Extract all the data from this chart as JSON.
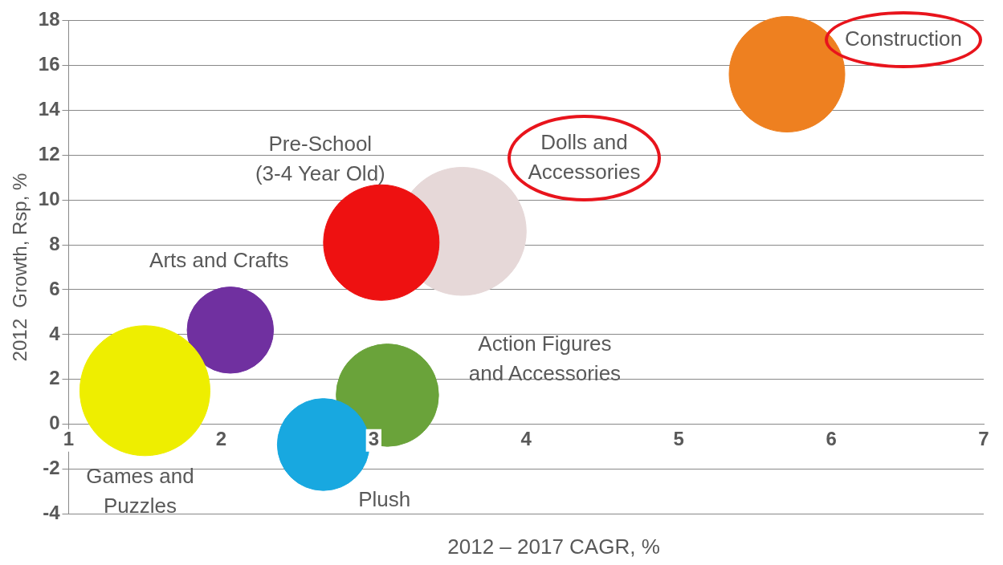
{
  "chart_data": {
    "type": "bubble",
    "xlabel": "2012 – 2017 CAGR, %",
    "ylabel": "2012  Growth, Rsp, %",
    "xlim": [
      1,
      7
    ],
    "xticks": [
      1,
      2,
      3,
      4,
      5,
      6,
      7
    ],
    "ylim": [
      -4,
      18
    ],
    "yticks": [
      -4,
      -2,
      0,
      2,
      4,
      6,
      8,
      10,
      12,
      14,
      16,
      18
    ],
    "grid": "y",
    "series": [
      {
        "name": "Games and\nPuzzles",
        "color": "#eeee00",
        "x": [
          1.5
        ],
        "values": [
          1.5
        ],
        "sizes": [
          1
        ]
      },
      {
        "name": "Arts and Crafts",
        "color": "#7030a0",
        "x": [
          2.06
        ],
        "values": [
          4.2
        ],
        "sizes": [
          0.44
        ]
      },
      {
        "name": "Plush",
        "color": "#18a8e0",
        "x": [
          2.67
        ],
        "values": [
          -0.9
        ],
        "sizes": [
          0.5
        ]
      },
      {
        "name": "Action Figures\nand Accessories",
        "color": "#6aa33a",
        "x": [
          3.09
        ],
        "values": [
          1.3
        ],
        "sizes": [
          0.62
        ]
      },
      {
        "name": "Pre-School\n(3-4 Year Old)",
        "color": "#ee1111",
        "x": [
          3.05
        ],
        "values": [
          8.1
        ],
        "sizes": [
          0.79
        ]
      },
      {
        "name": "Dolls and\nAccessories",
        "color": "#e6d8d8",
        "x": [
          3.58
        ],
        "values": [
          8.6
        ],
        "sizes": [
          0.97
        ]
      },
      {
        "name": "Construction",
        "color": "#ee8020",
        "x": [
          5.71
        ],
        "values": [
          15.6
        ],
        "sizes": [
          0.79
        ]
      }
    ]
  }
}
